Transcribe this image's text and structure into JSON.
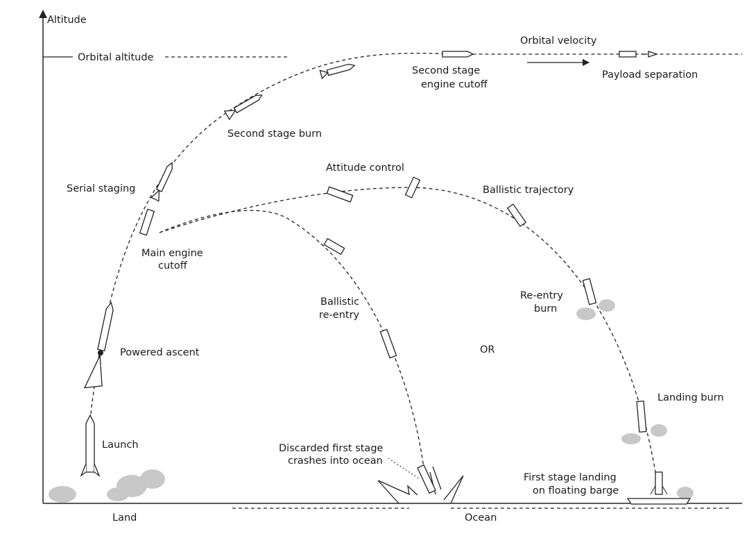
{
  "axis": {
    "y_label": "Altitude",
    "orbital_altitude": "Orbital altitude"
  },
  "labels": {
    "orbital_velocity": "Orbital velocity",
    "payload_separation": "Payload separation",
    "second_stage_cutoff_1": "Second stage",
    "second_stage_cutoff_2": "engine cutoff",
    "second_stage_burn": "Second stage burn",
    "attitude_control": "Attitude control",
    "ballistic_trajectory": "Ballistic trajectory",
    "serial_staging": "Serial staging",
    "main_engine_cutoff_1": "Main engine",
    "main_engine_cutoff_2": "cutoff",
    "ballistic_reentry_1": "Ballistic",
    "ballistic_reentry_2": "re-entry",
    "reentry_burn_1": "Re-entry",
    "reentry_burn_2": "burn",
    "or": "OR",
    "powered_ascent": "Powered ascent",
    "landing_burn": "Landing burn",
    "launch": "Launch",
    "discarded_1": "Discarded first stage",
    "discarded_2": "crashes into ocean",
    "barge_1": "First stage  landing",
    "barge_2": "on floating barge",
    "land": "Land",
    "ocean": "Ocean"
  },
  "colors": {
    "line": "#222222",
    "smoke": "#c8c8c8"
  }
}
